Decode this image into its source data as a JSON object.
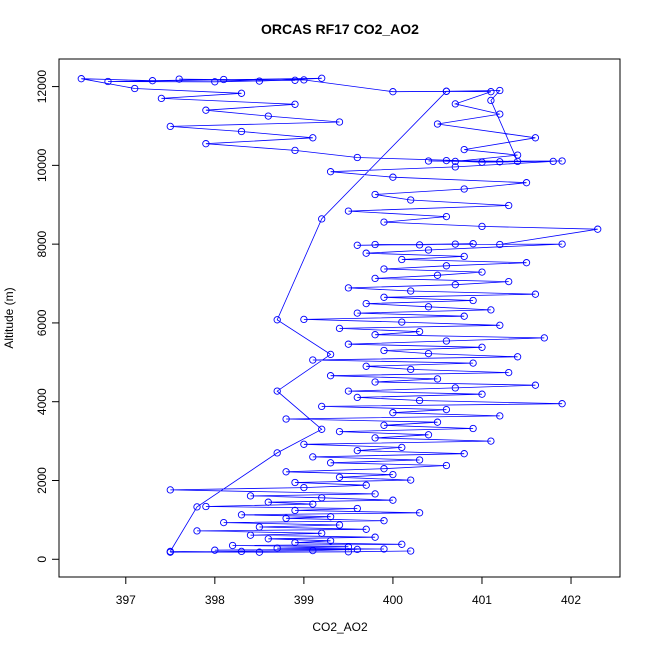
{
  "chart_data": {
    "type": "scatter",
    "title": "ORCAS RF17 CO2_AO2",
    "xlabel": "CO2_AO2",
    "ylabel": "Altitude (m)",
    "xlim": [
      396.25,
      402.55
    ],
    "ylim": [
      -450,
      12700
    ],
    "x_ticks": [
      "397",
      "398",
      "399",
      "400",
      "401",
      "402"
    ],
    "y_ticks": [
      "0",
      "2000",
      "4000",
      "6000",
      "8000",
      "10000",
      "12000"
    ],
    "marker": "open-circle",
    "connected": true,
    "grid": false,
    "color": "#0000ff",
    "series": [
      {
        "points": [
          [
            397.5,
            180
          ],
          [
            398.3,
            200
          ],
          [
            399.1,
            220
          ],
          [
            399.6,
            250
          ],
          [
            398.0,
            230
          ],
          [
            399.9,
            260
          ],
          [
            398.7,
            280
          ],
          [
            399.5,
            320
          ],
          [
            398.2,
            350
          ],
          [
            400.1,
            380
          ],
          [
            398.9,
            420
          ],
          [
            399.3,
            470
          ],
          [
            398.6,
            520
          ],
          [
            399.8,
            560
          ],
          [
            398.4,
            610
          ],
          [
            399.2,
            660
          ],
          [
            397.8,
            720
          ],
          [
            399.7,
            760
          ],
          [
            398.5,
            820
          ],
          [
            399.4,
            870
          ],
          [
            398.1,
            930
          ],
          [
            399.9,
            980
          ],
          [
            398.8,
            1040
          ],
          [
            399.3,
            1080
          ],
          [
            398.3,
            1130
          ],
          [
            400.3,
            1180
          ],
          [
            398.9,
            1240
          ],
          [
            399.6,
            1290
          ],
          [
            397.9,
            1340
          ],
          [
            399.1,
            1400
          ],
          [
            398.6,
            1450
          ],
          [
            400.0,
            1500
          ],
          [
            399.2,
            1560
          ],
          [
            398.4,
            1610
          ],
          [
            399.8,
            1660
          ],
          [
            397.5,
            1760
          ],
          [
            399.0,
            1820
          ],
          [
            399.7,
            1880
          ],
          [
            398.9,
            1950
          ],
          [
            400.2,
            2010
          ],
          [
            399.4,
            2080
          ],
          [
            400.0,
            2150
          ],
          [
            398.8,
            2220
          ],
          [
            399.9,
            2300
          ],
          [
            400.6,
            2380
          ],
          [
            399.3,
            2450
          ],
          [
            400.3,
            2520
          ],
          [
            399.1,
            2600
          ],
          [
            400.8,
            2680
          ],
          [
            399.6,
            2760
          ],
          [
            400.1,
            2840
          ],
          [
            399.0,
            2920
          ],
          [
            401.1,
            3000
          ],
          [
            399.8,
            3080
          ],
          [
            400.4,
            3160
          ],
          [
            399.4,
            3240
          ],
          [
            400.9,
            3320
          ],
          [
            399.9,
            3400
          ],
          [
            400.5,
            3480
          ],
          [
            398.8,
            3560
          ],
          [
            401.2,
            3640
          ],
          [
            400.0,
            3720
          ],
          [
            400.6,
            3800
          ],
          [
            399.2,
            3880
          ],
          [
            401.9,
            3950
          ],
          [
            400.3,
            4030
          ],
          [
            399.6,
            4110
          ],
          [
            401.0,
            4190
          ],
          [
            399.5,
            4270
          ],
          [
            400.7,
            4350
          ],
          [
            401.6,
            4420
          ],
          [
            399.8,
            4500
          ],
          [
            400.5,
            4580
          ],
          [
            399.3,
            4660
          ],
          [
            401.3,
            4740
          ],
          [
            400.2,
            4820
          ],
          [
            399.7,
            4900
          ],
          [
            400.9,
            4980
          ],
          [
            399.1,
            5060
          ],
          [
            401.4,
            5140
          ],
          [
            400.4,
            5220
          ],
          [
            399.9,
            5300
          ],
          [
            401.0,
            5380
          ],
          [
            399.5,
            5460
          ],
          [
            400.6,
            5540
          ],
          [
            401.7,
            5620
          ],
          [
            399.8,
            5700
          ],
          [
            400.3,
            5780
          ],
          [
            399.4,
            5860
          ],
          [
            401.2,
            5940
          ],
          [
            400.1,
            6020
          ],
          [
            399.0,
            6090
          ],
          [
            400.8,
            6170
          ],
          [
            399.6,
            6250
          ],
          [
            401.1,
            6330
          ],
          [
            400.4,
            6410
          ],
          [
            399.7,
            6490
          ],
          [
            400.9,
            6570
          ],
          [
            399.9,
            6650
          ],
          [
            401.6,
            6730
          ],
          [
            400.2,
            6810
          ],
          [
            399.5,
            6890
          ],
          [
            400.7,
            6970
          ],
          [
            401.3,
            7050
          ],
          [
            399.8,
            7130
          ],
          [
            400.5,
            7210
          ],
          [
            401.0,
            7290
          ],
          [
            399.9,
            7370
          ],
          [
            400.6,
            7450
          ],
          [
            401.5,
            7530
          ],
          [
            400.1,
            7610
          ],
          [
            400.8,
            7690
          ],
          [
            399.7,
            7770
          ],
          [
            400.4,
            7850
          ],
          [
            401.9,
            8000
          ],
          [
            399.8,
            7990
          ],
          [
            400.3,
            7980
          ],
          [
            400.9,
            8010
          ],
          [
            399.6,
            7970
          ],
          [
            400.7,
            8000
          ],
          [
            401.2,
            7990
          ],
          [
            402.3,
            8380
          ],
          [
            401.0,
            8450
          ],
          [
            399.9,
            8560
          ],
          [
            400.6,
            8700
          ],
          [
            399.5,
            8840
          ],
          [
            401.3,
            8980
          ],
          [
            400.2,
            9120
          ],
          [
            399.8,
            9260
          ],
          [
            400.8,
            9400
          ],
          [
            401.5,
            9560
          ],
          [
            400.0,
            9700
          ],
          [
            399.3,
            9840
          ],
          [
            400.7,
            9960
          ],
          [
            401.8,
            10100
          ],
          [
            400.4,
            10110
          ],
          [
            401.2,
            10090
          ],
          [
            399.6,
            10200
          ],
          [
            398.9,
            10380
          ],
          [
            397.9,
            10550
          ],
          [
            399.1,
            10700
          ],
          [
            398.3,
            10860
          ],
          [
            397.5,
            10990
          ],
          [
            399.4,
            11100
          ],
          [
            398.6,
            11250
          ],
          [
            397.9,
            11400
          ],
          [
            398.9,
            11550
          ],
          [
            397.4,
            11700
          ],
          [
            398.3,
            11830
          ],
          [
            397.1,
            11950
          ],
          [
            396.5,
            12200
          ],
          [
            397.3,
            12150
          ],
          [
            398.1,
            12180
          ],
          [
            398.9,
            12160
          ],
          [
            397.6,
            12190
          ],
          [
            398.5,
            12140
          ],
          [
            399.2,
            12210
          ],
          [
            396.8,
            12130
          ],
          [
            398.0,
            12120
          ],
          [
            399.0,
            12170
          ],
          [
            400.0,
            11870
          ],
          [
            400.6,
            11880
          ],
          [
            401.1,
            11870
          ],
          [
            400.7,
            11560
          ],
          [
            401.2,
            11300
          ],
          [
            400.5,
            11050
          ],
          [
            401.6,
            10700
          ],
          [
            400.8,
            10400
          ],
          [
            401.4,
            10260
          ],
          [
            400.7,
            10100
          ],
          [
            401.9,
            10110
          ],
          [
            401.0,
            10080
          ],
          [
            400.6,
            10120
          ],
          [
            401.4,
            10100
          ],
          [
            401.1,
            11650
          ],
          [
            401.2,
            11900
          ],
          [
            400.6,
            11880
          ],
          [
            399.2,
            8640
          ],
          [
            398.7,
            6080
          ],
          [
            399.3,
            5200
          ],
          [
            398.7,
            4270
          ],
          [
            399.2,
            3300
          ],
          [
            398.7,
            2700
          ],
          [
            397.8,
            1330
          ],
          [
            397.5,
            200
          ],
          [
            398.5,
            180
          ],
          [
            399.5,
            190
          ],
          [
            400.2,
            210
          ]
        ]
      }
    ]
  }
}
